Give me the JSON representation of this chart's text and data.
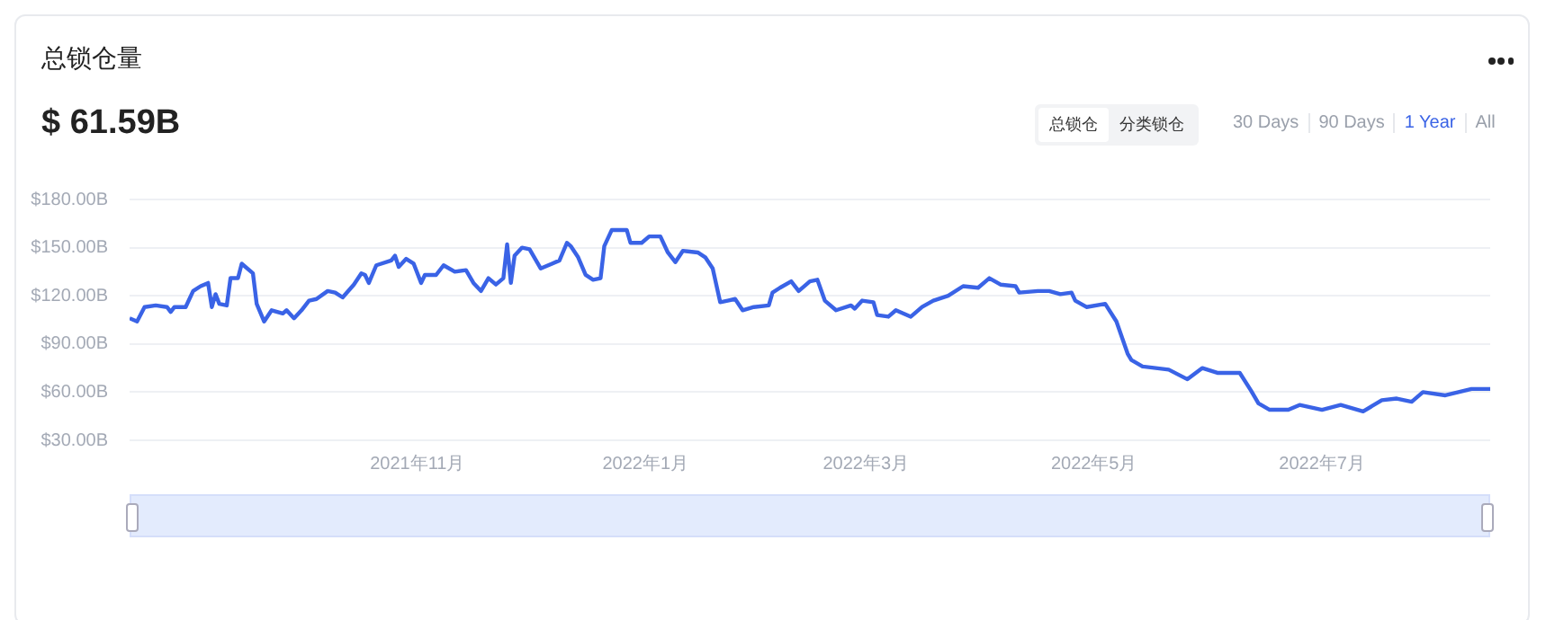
{
  "chart_data": {
    "type": "line",
    "title": "总锁仓量",
    "subtitle": "$ 61.59B",
    "annotations": [
      "总锁仓",
      "分类锁仓",
      "30 Days",
      "90 Days",
      "1 Year",
      "All"
    ],
    "x": [
      "2021-08-16",
      "2021-08-18",
      "2021-08-20",
      "2021-08-23",
      "2021-08-26",
      "2021-08-27",
      "2021-08-28",
      "2021-08-31",
      "2021-09-02",
      "2021-09-04",
      "2021-09-06",
      "2021-09-07",
      "2021-09-08",
      "2021-09-09",
      "2021-09-11",
      "2021-09-12",
      "2021-09-14",
      "2021-09-15",
      "2021-09-18",
      "2021-09-19",
      "2021-09-21",
      "2021-09-23",
      "2021-09-26",
      "2021-09-27",
      "2021-09-29",
      "2021-10-01",
      "2021-10-03",
      "2021-10-05",
      "2021-10-08",
      "2021-10-10",
      "2021-10-12",
      "2021-10-15",
      "2021-10-17",
      "2021-10-18",
      "2021-10-19",
      "2021-10-21",
      "2021-10-25",
      "2021-10-26",
      "2021-10-27",
      "2021-10-29",
      "2021-10-31",
      "2021-11-02",
      "2021-11-03",
      "2021-11-06",
      "2021-11-08",
      "2021-11-11",
      "2021-11-14",
      "2021-11-16",
      "2021-11-18",
      "2021-11-20",
      "2021-11-22",
      "2021-11-24",
      "2021-11-25",
      "2021-11-26",
      "2021-11-27",
      "2021-11-29",
      "2021-12-01",
      "2021-12-04",
      "2021-12-07",
      "2021-12-09",
      "2021-12-11",
      "2021-12-12",
      "2021-12-14",
      "2021-12-16",
      "2021-12-18",
      "2021-12-20",
      "2021-12-21",
      "2021-12-23",
      "2021-12-27",
      "2021-12-28",
      "2021-12-31",
      "2022-01-02",
      "2022-01-05",
      "2022-01-07",
      "2022-01-09",
      "2022-01-11",
      "2022-01-15",
      "2022-01-17",
      "2022-01-19",
      "2022-01-21",
      "2022-01-23",
      "2022-01-25",
      "2022-01-27",
      "2022-01-30",
      "2022-02-03",
      "2022-02-04",
      "2022-02-06",
      "2022-02-09",
      "2022-02-11",
      "2022-02-14",
      "2022-02-16",
      "2022-02-18",
      "2022-02-21",
      "2022-02-25",
      "2022-02-26",
      "2022-02-28",
      "2022-03-03",
      "2022-03-04",
      "2022-03-07",
      "2022-03-09",
      "2022-03-13",
      "2022-03-16",
      "2022-03-19",
      "2022-03-23",
      "2022-03-27",
      "2022-03-31",
      "2022-04-03",
      "2022-04-06",
      "2022-04-10",
      "2022-04-11",
      "2022-04-16",
      "2022-04-19",
      "2022-04-22",
      "2022-04-25",
      "2022-04-26",
      "2022-04-29",
      "2022-05-04",
      "2022-05-07",
      "2022-05-10",
      "2022-05-11",
      "2022-05-14",
      "2022-05-21",
      "2022-05-26",
      "2022-05-30",
      "2022-06-03",
      "2022-06-09",
      "2022-06-12",
      "2022-06-14",
      "2022-06-17",
      "2022-06-22",
      "2022-06-25",
      "2022-07-01",
      "2022-07-06",
      "2022-07-12",
      "2022-07-17",
      "2022-07-21",
      "2022-07-25",
      "2022-07-28",
      "2022-08-03",
      "2022-08-10",
      "2022-08-15"
    ],
    "series": [
      {
        "color": "#3a63e6",
        "values": [
          106,
          104,
          113,
          114,
          113,
          110,
          113,
          113,
          123,
          126,
          128,
          113,
          121,
          115,
          114,
          131,
          131,
          140,
          134,
          115,
          104,
          111,
          109,
          111,
          106,
          111,
          117,
          118,
          123,
          122,
          119,
          127,
          134,
          133,
          128,
          139,
          142,
          145,
          138,
          143,
          140,
          128,
          133,
          133,
          139,
          135,
          136,
          128,
          123,
          131,
          127,
          131,
          152,
          128,
          145,
          150,
          149,
          137,
          140,
          142,
          153,
          151,
          144,
          133,
          130,
          131,
          151,
          161,
          161,
          153,
          153,
          157,
          157,
          147,
          141,
          148,
          147,
          144,
          137,
          116,
          117,
          118,
          111,
          113,
          114,
          122,
          125,
          129,
          123,
          129,
          130,
          117,
          111,
          114,
          112,
          117,
          116,
          108,
          107,
          111,
          107,
          113,
          117,
          120,
          126,
          125,
          131,
          127,
          126,
          122,
          123,
          123,
          121,
          122,
          117,
          113,
          115,
          104,
          84,
          80,
          76,
          74,
          68,
          75,
          72,
          72,
          61,
          53,
          49,
          49,
          52,
          49,
          52,
          48,
          55,
          56,
          54,
          60,
          58,
          62,
          62
        ]
      }
    ],
    "xlim": [
      "2021-08-16",
      "2022-08-15"
    ],
    "xticks": [
      {
        "value": "2021-11-01",
        "label": "2021年11月"
      },
      {
        "value": "2022-01-01",
        "label": "2022年1月"
      },
      {
        "value": "2022-03-01",
        "label": "2022年3月"
      },
      {
        "value": "2022-05-01",
        "label": "2022年5月"
      },
      {
        "value": "2022-07-01",
        "label": "2022年7月"
      }
    ],
    "ylim": [
      30,
      180
    ],
    "yticks": [
      {
        "value": 30,
        "label": "$30.00B"
      },
      {
        "value": 60,
        "label": "$60.00B"
      },
      {
        "value": 90,
        "label": "$90.00B"
      },
      {
        "value": 120,
        "label": "$120.00B"
      },
      {
        "value": 150,
        "label": "$150.00B"
      },
      {
        "value": 180,
        "label": "$180.00B"
      }
    ],
    "grid": "y",
    "legend": false,
    "marker": "none",
    "line_style": "solid"
  }
}
